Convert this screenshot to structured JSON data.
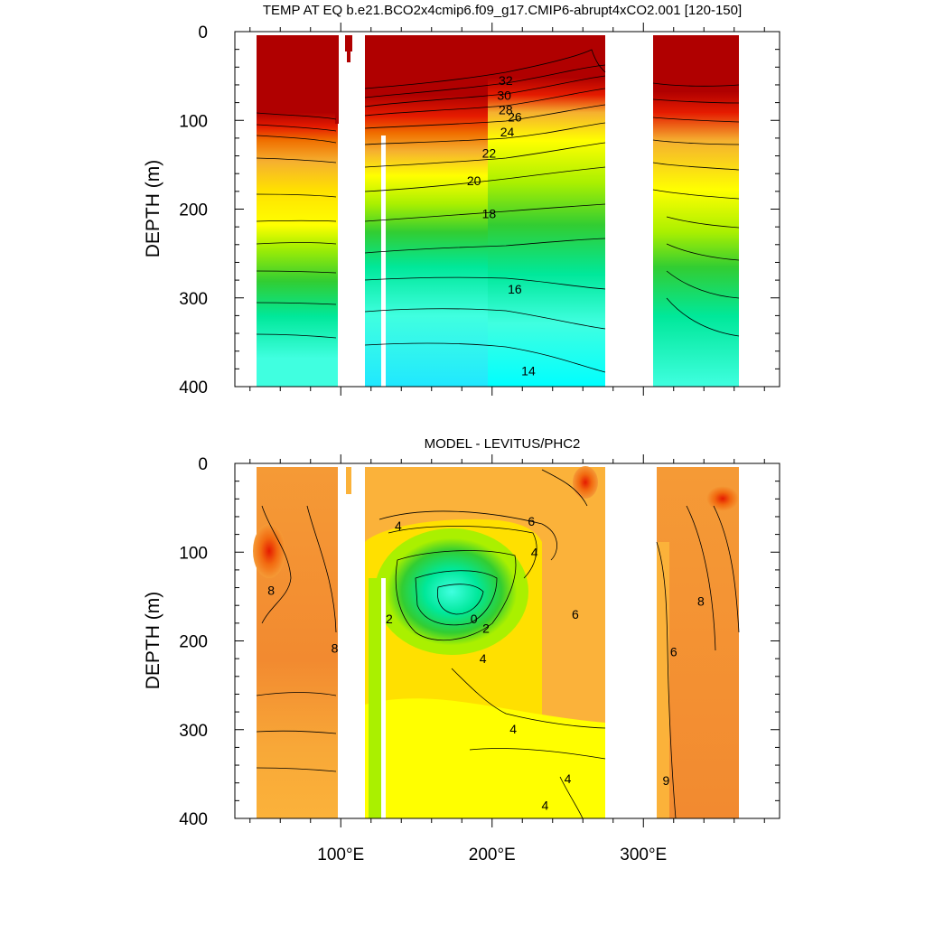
{
  "chart_data": [
    {
      "type": "heatmap",
      "title": "TEMP AT EQ b.e21.BCO2x4cmip6.f09_g17.CMIP6-abrupt4xCO2.001 [120-150]",
      "xlabel": "",
      "ylabel": "DEPTH (m)",
      "xlim": [
        30,
        390
      ],
      "ylim": [
        400,
        0
      ],
      "y_ticks": [
        "0",
        "100",
        "200",
        "300",
        "400"
      ],
      "x_ticks": [],
      "contour_labels": [
        {
          "label": "32",
          "lon": 209,
          "depth": 55
        },
        {
          "label": "30",
          "lon": 208,
          "depth": 72
        },
        {
          "label": "28",
          "lon": 209,
          "depth": 88
        },
        {
          "label": "26",
          "lon": 215,
          "depth": 96
        },
        {
          "label": "24",
          "lon": 210,
          "depth": 113
        },
        {
          "label": "22",
          "lon": 198,
          "depth": 137
        },
        {
          "label": "20",
          "lon": 188,
          "depth": 168
        },
        {
          "label": "18",
          "lon": 198,
          "depth": 205
        },
        {
          "label": "16",
          "lon": 215,
          "depth": 290
        },
        {
          "label": "14",
          "lon": 224,
          "depth": 382
        }
      ]
    },
    {
      "type": "heatmap",
      "title": "MODEL - LEVITUS/PHC2",
      "xlabel": "",
      "ylabel": "DEPTH (m)",
      "xlim": [
        30,
        390
      ],
      "ylim": [
        400,
        0
      ],
      "y_ticks": [
        "0",
        "100",
        "200",
        "300",
        "400"
      ],
      "x_ticks": [
        "100°E",
        "200°E",
        "300°E"
      ],
      "contour_labels": [
        {
          "label": "4",
          "lon": 138,
          "depth": 70
        },
        {
          "label": "6",
          "lon": 226,
          "depth": 65
        },
        {
          "label": "4",
          "lon": 228,
          "depth": 100
        },
        {
          "label": "8",
          "lon": 54,
          "depth": 143
        },
        {
          "label": "6",
          "lon": 255,
          "depth": 170
        },
        {
          "label": "8",
          "lon": 338,
          "depth": 155
        },
        {
          "label": "2",
          "lon": 132,
          "depth": 175
        },
        {
          "label": "0",
          "lon": 188,
          "depth": 175
        },
        {
          "label": "2",
          "lon": 196,
          "depth": 186
        },
        {
          "label": "8",
          "lon": 96,
          "depth": 208
        },
        {
          "label": "6",
          "lon": 320,
          "depth": 212
        },
        {
          "label": "4",
          "lon": 194,
          "depth": 220
        },
        {
          "label": "4",
          "lon": 214,
          "depth": 299
        },
        {
          "label": "4",
          "lon": 250,
          "depth": 355
        },
        {
          "label": "9",
          "lon": 315,
          "depth": 357
        },
        {
          "label": "4",
          "lon": 235,
          "depth": 385
        }
      ]
    }
  ],
  "colors": {
    "dark_red": "#b00000",
    "red": "#e51b00",
    "orange": "#f59a36",
    "light_orange": "#fbb23a",
    "yellow": "#ffff00",
    "yellow_green": "#aaf000",
    "green": "#32cd32",
    "spring_green": "#00e89a",
    "aqua": "#40ffe0",
    "cyan": "#00ffff"
  }
}
